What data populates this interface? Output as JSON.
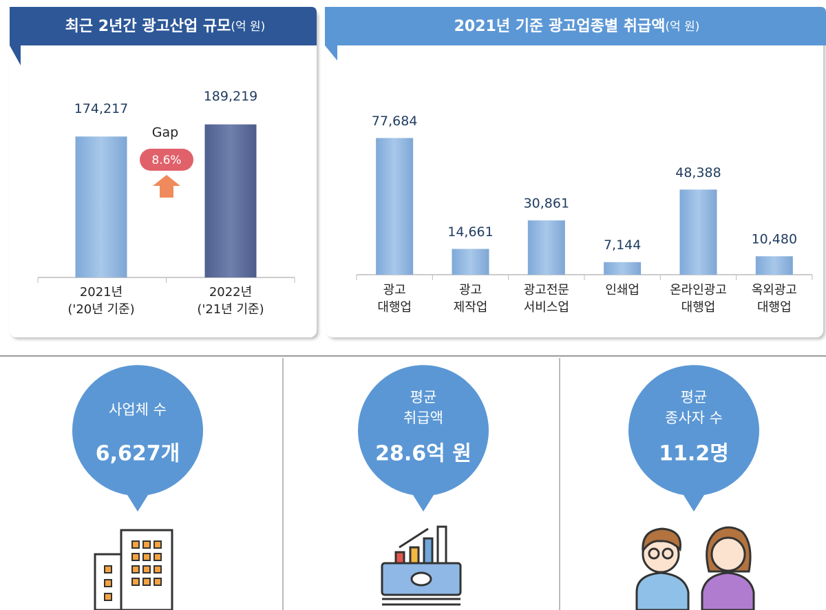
{
  "chart_data": [
    {
      "type": "bar",
      "title": "최근 2년간 광고산업 규모",
      "unit": "(억 원)",
      "categories": [
        [
          "2021년",
          "('20년 기준)"
        ],
        [
          "2022년",
          "('21년 기준)"
        ]
      ],
      "values": [
        174217,
        189219
      ],
      "value_labels": [
        "174,217",
        "189,219"
      ],
      "colors": [
        "#8fb5dc",
        "#5a6a9a"
      ],
      "ylim": [
        0,
        200000
      ],
      "annotations": [
        "Gap",
        "8.6%"
      ]
    },
    {
      "type": "bar",
      "title": "2021년 기준 광고업종별 취급액",
      "unit": "(억 원)",
      "categories": [
        [
          "광고",
          "대행업"
        ],
        [
          "광고",
          "제작업"
        ],
        [
          "광고전문",
          "서비스업"
        ],
        [
          "인쇄업"
        ],
        [
          "온라인광고",
          "대행업"
        ],
        [
          "옥외광고",
          "대행업"
        ]
      ],
      "values": [
        77684,
        14661,
        30861,
        7144,
        48388,
        10480
      ],
      "value_labels": [
        "77,684",
        "14,661",
        "30,861",
        "7,144",
        "48,388",
        "10,480"
      ],
      "colors": [
        "#8fb5dc"
      ],
      "ylim": [
        0,
        90000
      ]
    }
  ],
  "stats": [
    {
      "label": [
        "사업체 수"
      ],
      "value": "6,627개"
    },
    {
      "label": [
        "평균",
        "취급액"
      ],
      "value": "28.6억 원"
    },
    {
      "label": [
        "평균",
        "종사자 수"
      ],
      "value": "11.2명"
    }
  ]
}
